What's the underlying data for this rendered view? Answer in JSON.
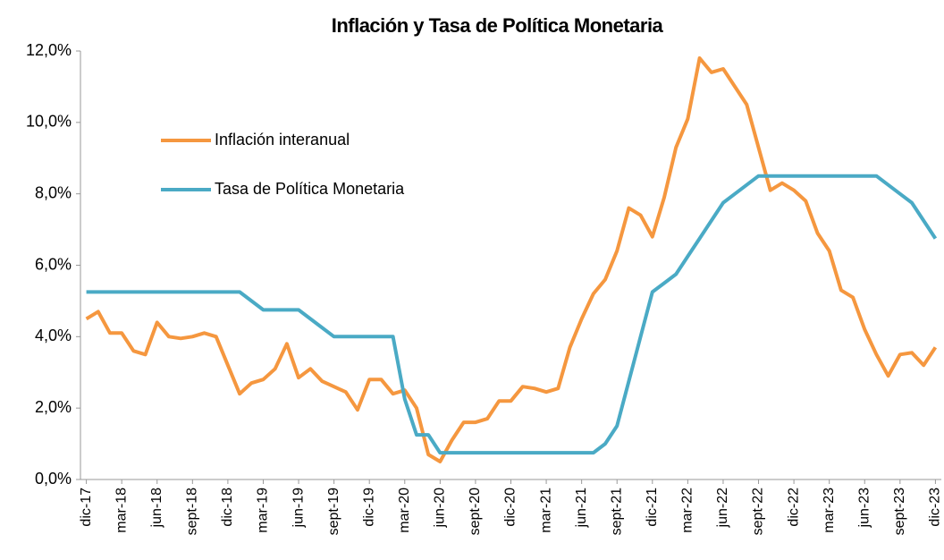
{
  "chart_data": {
    "type": "line",
    "title": "Inflación y Tasa de Política Monetaria",
    "categories": [
      "dic-17",
      null,
      null,
      "mar-18",
      null,
      null,
      "jun-18",
      null,
      null,
      "sept-18",
      null,
      null,
      "dic-18",
      null,
      null,
      "mar-19",
      null,
      null,
      "jun-19",
      null,
      null,
      "sept-19",
      null,
      null,
      "dic-19",
      null,
      null,
      "mar-20",
      null,
      null,
      "jun-20",
      null,
      null,
      "sept-20",
      null,
      null,
      "dic-20",
      null,
      null,
      "mar-21",
      null,
      null,
      "jun-21",
      null,
      null,
      "sept-21",
      null,
      null,
      "dic-21",
      null,
      null,
      "mar-22",
      null,
      null,
      "jun-22",
      null,
      null,
      "sept-22",
      null,
      null,
      "dic-22",
      null,
      null,
      "mar-23",
      null,
      null,
      "jun-23",
      null,
      null,
      "sept-23",
      null,
      null,
      "dic-23"
    ],
    "series": [
      {
        "name": "Inflación interanual",
        "color": "#f5973f",
        "values": [
          4.5,
          4.7,
          4.1,
          4.1,
          3.6,
          3.5,
          4.4,
          4.0,
          3.95,
          4.0,
          4.1,
          4.0,
          3.2,
          2.4,
          2.7,
          2.8,
          3.1,
          3.8,
          2.85,
          3.1,
          2.75,
          2.6,
          2.45,
          1.95,
          2.8,
          2.8,
          2.4,
          2.5,
          2.0,
          0.7,
          0.5,
          1.1,
          1.6,
          1.6,
          1.7,
          2.2,
          2.2,
          2.6,
          2.55,
          2.45,
          2.55,
          3.7,
          4.5,
          5.2,
          5.6,
          6.4,
          7.6,
          7.4,
          6.8,
          7.9,
          9.3,
          10.1,
          11.8,
          11.4,
          11.5,
          11.0,
          10.5,
          9.3,
          8.1,
          8.3,
          8.1,
          7.8,
          6.9,
          6.4,
          5.3,
          5.1,
          4.2,
          3.5,
          2.9,
          3.5,
          3.55,
          3.2,
          3.7
        ]
      },
      {
        "name": "Tasa de Política Monetaria",
        "color": "#4aaac5",
        "values": [
          5.25,
          5.25,
          5.25,
          5.25,
          5.25,
          5.25,
          5.25,
          5.25,
          5.25,
          5.25,
          5.25,
          5.25,
          5.25,
          5.25,
          5.0,
          4.75,
          4.75,
          4.75,
          4.75,
          4.5,
          4.25,
          4.0,
          4.0,
          4.0,
          4.0,
          4.0,
          4.0,
          2.25,
          1.25,
          1.25,
          0.75,
          0.75,
          0.75,
          0.75,
          0.75,
          0.75,
          0.75,
          0.75,
          0.75,
          0.75,
          0.75,
          0.75,
          0.75,
          0.75,
          1.0,
          1.5,
          2.75,
          4.0,
          5.25,
          5.5,
          5.75,
          6.25,
          6.75,
          7.25,
          7.75,
          8.0,
          8.25,
          8.5,
          8.5,
          8.5,
          8.5,
          8.5,
          8.5,
          8.5,
          8.5,
          8.5,
          8.5,
          8.5,
          8.25,
          8.0,
          7.75,
          7.25,
          6.75
        ]
      }
    ],
    "ylim": [
      0,
      12
    ],
    "yticks": [
      {
        "value": 0,
        "label": "0,0%"
      },
      {
        "value": 2,
        "label": "2,0%"
      },
      {
        "value": 4,
        "label": "4,0%"
      },
      {
        "value": 6,
        "label": "6,0%"
      },
      {
        "value": 8,
        "label": "8,0%"
      },
      {
        "value": 10,
        "label": "10,0%"
      },
      {
        "value": 12,
        "label": "12,0%"
      }
    ],
    "grid": false,
    "legend": "upper left"
  }
}
